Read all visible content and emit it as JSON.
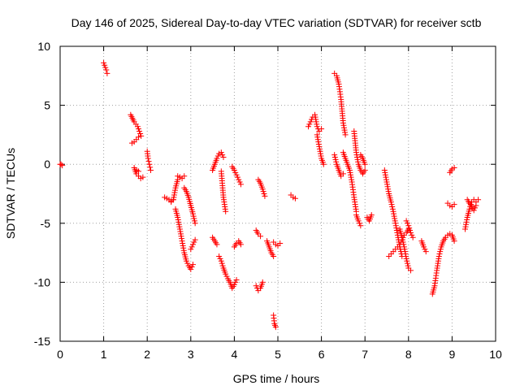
{
  "chart_data": {
    "type": "scatter",
    "title": "Day 146 of 2025, Sidereal Day-to-day VTEC variation (SDTVAR) for receiver sctb",
    "xlabel": "GPS time / hours",
    "ylabel": "SDTVAR / TECUs",
    "xlim": [
      0,
      10
    ],
    "ylim": [
      -15,
      10
    ],
    "xticks": [
      0,
      1,
      2,
      3,
      4,
      5,
      6,
      7,
      8,
      9,
      10
    ],
    "yticks": [
      -15,
      -10,
      -5,
      0,
      5,
      10
    ],
    "grid": true,
    "marker": "+",
    "series_color": "#ff0000",
    "segments": [
      {
        "x": [
          0.0,
          0.02,
          0.05
        ],
        "y": [
          0.0,
          0.0,
          -0.1
        ]
      },
      {
        "x": [
          1.0,
          1.02,
          1.04,
          1.06,
          1.08
        ],
        "y": [
          8.6,
          8.4,
          8.2,
          8.0,
          7.7
        ]
      },
      {
        "x": [
          1.62,
          1.66,
          1.7,
          1.74,
          1.78,
          1.82,
          1.86
        ],
        "y": [
          4.2,
          3.9,
          3.6,
          3.4,
          3.2,
          2.8,
          2.4
        ]
      },
      {
        "x": [
          1.65,
          1.7,
          1.75,
          1.8
        ],
        "y": [
          1.8,
          1.9,
          2.1,
          2.3
        ]
      },
      {
        "x": [
          1.7,
          1.75,
          1.8,
          1.85,
          1.9
        ],
        "y": [
          -0.3,
          -0.8,
          -1.0,
          -1.2,
          -1.1
        ]
      },
      {
        "x": [
          1.76,
          1.8
        ],
        "y": [
          -0.5,
          -0.6
        ]
      },
      {
        "x": [
          2.0,
          2.02,
          2.05,
          2.08
        ],
        "y": [
          1.1,
          0.5,
          0.0,
          -0.5
        ]
      },
      {
        "x": [
          2.4,
          2.45,
          2.5,
          2.55,
          2.6
        ],
        "y": [
          -2.8,
          -2.9,
          -3.0,
          -3.1,
          -3.0
        ]
      },
      {
        "x": [
          2.55,
          2.6,
          2.62,
          2.65,
          2.7,
          2.75
        ],
        "y": [
          -3.2,
          -3.0,
          -2.6,
          -2.0,
          -1.3,
          -1.1
        ]
      },
      {
        "x": [
          2.7,
          2.75,
          2.8,
          2.85
        ],
        "y": [
          -1.0,
          -1.1,
          -1.2,
          -1.0
        ]
      },
      {
        "x": [
          2.65,
          2.7,
          2.75,
          2.8,
          2.85,
          2.9,
          2.95,
          3.0,
          3.05
        ],
        "y": [
          -3.8,
          -4.5,
          -5.5,
          -6.5,
          -7.5,
          -8.2,
          -8.6,
          -8.9,
          -8.5
        ]
      },
      {
        "x": [
          2.85,
          2.9,
          2.95,
          3.0,
          3.05,
          3.1
        ],
        "y": [
          -2.0,
          -2.3,
          -2.8,
          -3.5,
          -4.2,
          -5.0
        ]
      },
      {
        "x": [
          3.0,
          3.05,
          3.1
        ],
        "y": [
          -7.2,
          -6.8,
          -6.4
        ]
      },
      {
        "x": [
          3.5,
          3.55,
          3.6
        ],
        "y": [
          -6.2,
          -6.5,
          -6.8
        ]
      },
      {
        "x": [
          3.5,
          3.55,
          3.6,
          3.65,
          3.7,
          3.75
        ],
        "y": [
          -0.5,
          0.0,
          0.5,
          0.9,
          1.0,
          0.6
        ]
      },
      {
        "x": [
          3.7,
          3.75,
          3.8
        ],
        "y": [
          -0.6,
          -2.8,
          -4.0
        ]
      },
      {
        "x": [
          3.65,
          3.7,
          3.75,
          3.8,
          3.85,
          3.9,
          3.95,
          4.0,
          4.05
        ],
        "y": [
          -7.8,
          -8.2,
          -8.8,
          -9.3,
          -9.7,
          -10.0,
          -10.5,
          -10.2,
          -9.8
        ]
      },
      {
        "x": [
          3.95,
          4.0,
          4.05,
          4.1,
          4.15
        ],
        "y": [
          -0.2,
          -0.5,
          -0.9,
          -1.3,
          -1.7
        ]
      },
      {
        "x": [
          4.0,
          4.05,
          4.1,
          4.15
        ],
        "y": [
          -7.0,
          -6.7,
          -6.5,
          -6.8
        ]
      },
      {
        "x": [
          4.5,
          4.55,
          4.6,
          4.65
        ],
        "y": [
          -10.3,
          -10.7,
          -10.5,
          -10.0
        ]
      },
      {
        "x": [
          4.55,
          4.6,
          4.65,
          4.7
        ],
        "y": [
          -1.3,
          -1.6,
          -2.1,
          -2.7
        ]
      },
      {
        "x": [
          4.5,
          4.55,
          4.6
        ],
        "y": [
          -5.6,
          -5.9,
          -6.1
        ]
      },
      {
        "x": [
          4.75,
          4.8,
          4.85,
          4.9
        ],
        "y": [
          -6.5,
          -7.0,
          -7.5,
          -7.8
        ]
      },
      {
        "x": [
          4.9,
          4.95,
          5.0,
          5.05
        ],
        "y": [
          -6.6,
          -6.8,
          -6.9,
          -6.7
        ]
      },
      {
        "x": [
          4.9,
          4.92,
          4.95
        ],
        "y": [
          -12.8,
          -13.5,
          -13.8
        ]
      },
      {
        "x": [
          5.3,
          5.35,
          5.4
        ],
        "y": [
          -2.6,
          -2.8,
          -2.9
        ]
      },
      {
        "x": [
          5.7,
          5.75,
          5.8,
          5.85,
          5.9,
          5.95,
          6.0
        ],
        "y": [
          3.2,
          3.6,
          4.0,
          4.2,
          3.2,
          2.8,
          3.0
        ]
      },
      {
        "x": [
          5.9,
          5.95,
          6.0,
          6.05
        ],
        "y": [
          2.5,
          1.5,
          0.5,
          0.0
        ]
      },
      {
        "x": [
          6.3,
          6.35,
          6.4,
          6.45,
          6.5,
          6.55
        ],
        "y": [
          7.7,
          7.5,
          6.8,
          5.5,
          3.5,
          2.5
        ]
      },
      {
        "x": [
          6.3,
          6.35,
          6.4,
          6.45,
          6.5
        ],
        "y": [
          0.8,
          0.0,
          -0.5,
          -1.0,
          -0.8
        ]
      },
      {
        "x": [
          6.5,
          6.55,
          6.6,
          6.65,
          6.7,
          6.75,
          6.8
        ],
        "y": [
          1.0,
          0.5,
          0.0,
          -0.5,
          -1.5,
          -2.8,
          -4.0
        ]
      },
      {
        "x": [
          6.75,
          6.8,
          6.85,
          6.9,
          6.95,
          7.0
        ],
        "y": [
          2.8,
          1.0,
          0.0,
          -0.5,
          -0.8,
          -0.5
        ]
      },
      {
        "x": [
          6.8,
          6.85,
          6.9
        ],
        "y": [
          -4.3,
          -4.8,
          -5.2
        ]
      },
      {
        "x": [
          6.9,
          6.95,
          7.0
        ],
        "y": [
          0.8,
          0.5,
          0.0
        ]
      },
      {
        "x": [
          7.05,
          7.1,
          7.15
        ],
        "y": [
          -4.5,
          -4.8,
          -4.3
        ]
      },
      {
        "x": [
          7.45,
          7.5,
          7.55,
          7.6,
          7.65,
          7.7,
          7.75,
          7.8,
          7.85
        ],
        "y": [
          -0.5,
          -1.5,
          -2.5,
          -3.2,
          -4.0,
          -5.0,
          -6.0,
          -7.0,
          -7.8
        ]
      },
      {
        "x": [
          7.55,
          7.6,
          7.65,
          7.7,
          7.75,
          7.8,
          7.85,
          7.9,
          7.95,
          8.0
        ],
        "y": [
          -7.8,
          -7.6,
          -7.4,
          -7.2,
          -7.0,
          -6.8,
          -6.4,
          -6.0,
          -5.8,
          -5.5
        ]
      },
      {
        "x": [
          7.8,
          7.85,
          7.9,
          7.95,
          8.0,
          8.05
        ],
        "y": [
          -5.5,
          -6.2,
          -7.0,
          -8.0,
          -8.8,
          -9.0
        ]
      },
      {
        "x": [
          7.95,
          8.0,
          8.05,
          8.1
        ],
        "y": [
          -4.8,
          -5.2,
          -5.8,
          -6.2
        ]
      },
      {
        "x": [
          8.3,
          8.35,
          8.4
        ],
        "y": [
          -6.5,
          -7.0,
          -7.4
        ]
      },
      {
        "x": [
          8.55,
          8.6,
          8.65,
          8.7,
          8.75,
          8.8,
          8.85,
          8.9,
          8.95,
          9.0,
          9.05
        ],
        "y": [
          -11.0,
          -10.3,
          -9.0,
          -7.8,
          -7.0,
          -6.5,
          -6.2,
          -6.0,
          -5.9,
          -6.0,
          -6.5
        ]
      },
      {
        "x": [
          8.95,
          9.0,
          9.05
        ],
        "y": [
          -0.7,
          -0.4,
          -0.3
        ]
      },
      {
        "x": [
          8.9,
          8.95,
          9.0,
          9.05
        ],
        "y": [
          -3.3,
          -3.5,
          -3.6,
          -3.4
        ]
      },
      {
        "x": [
          9.3,
          9.35,
          9.4,
          9.45,
          9.5,
          9.55,
          9.6
        ],
        "y": [
          -5.5,
          -4.5,
          -3.8,
          -3.2,
          -3.0,
          -3.2,
          -3.0
        ]
      },
      {
        "x": [
          9.35,
          9.4,
          9.45,
          9.5,
          9.55
        ],
        "y": [
          -3.0,
          -3.3,
          -3.6,
          -3.9,
          -3.5
        ]
      }
    ]
  }
}
